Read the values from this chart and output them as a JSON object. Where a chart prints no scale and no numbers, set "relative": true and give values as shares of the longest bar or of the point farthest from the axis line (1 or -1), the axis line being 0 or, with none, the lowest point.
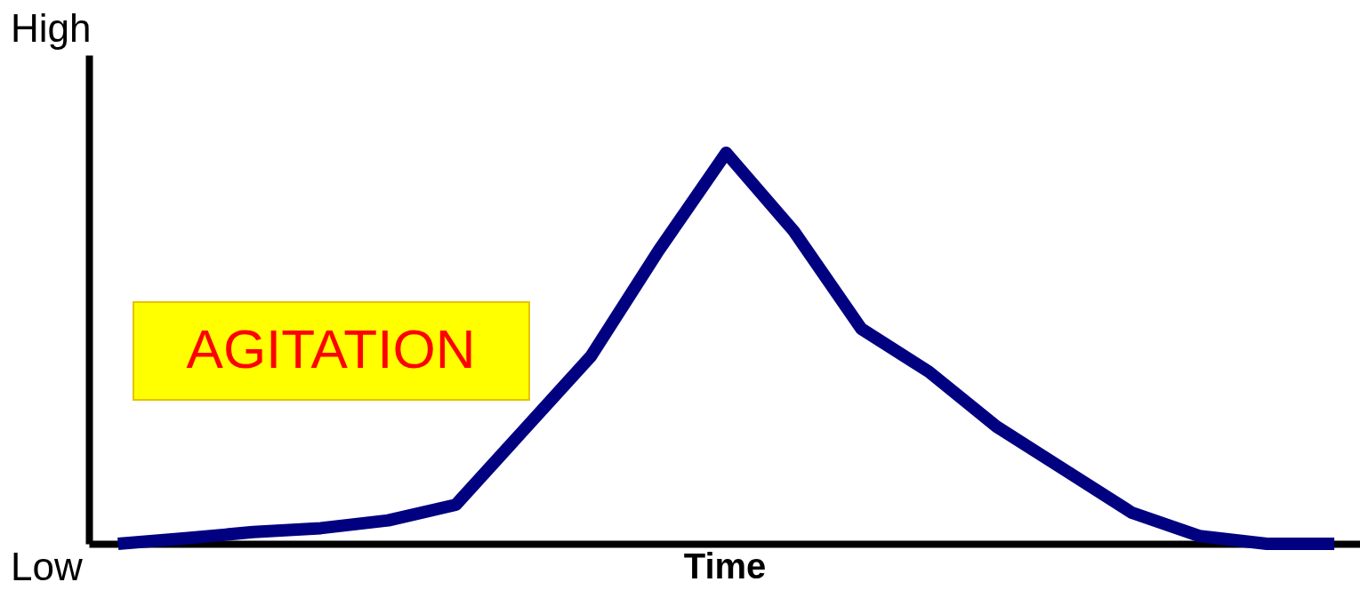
{
  "chart_data": {
    "type": "line",
    "xlabel": "Time",
    "relative": true,
    "tick_labels": false,
    "grid": false,
    "annotations": [
      "High",
      "Low",
      "AGITATION"
    ],
    "categories": [
      null,
      null,
      null,
      null,
      null,
      null,
      null,
      null,
      null,
      null,
      null,
      null,
      null,
      null,
      null,
      null,
      null,
      null,
      null
    ],
    "series": [
      {
        "color": "#000080",
        "values": [
          0,
          0.014,
          0.03,
          0.04,
          0.06,
          0.1,
          0.29,
          0.48,
          0.75,
          1,
          0.8,
          0.55,
          0.44,
          0.3,
          0.19,
          0.08,
          0.02,
          0,
          0
        ]
      }
    ]
  }
}
